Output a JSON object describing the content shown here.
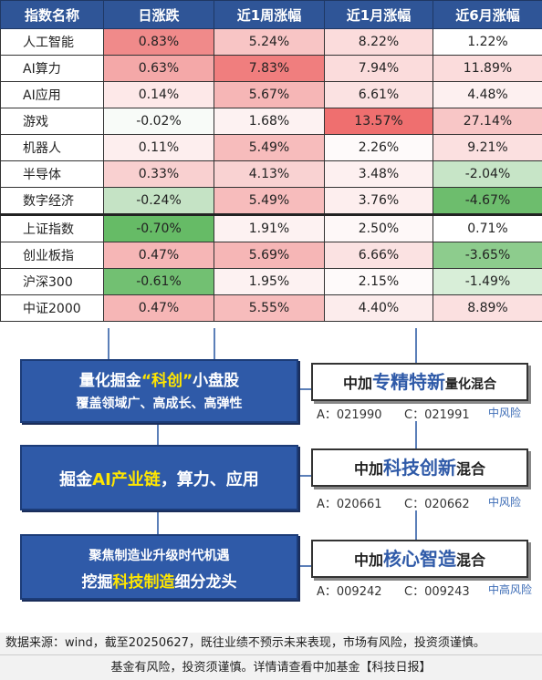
{
  "table": {
    "headers": [
      "指数名称",
      "日涨跌",
      "近1周涨幅",
      "近1月涨幅",
      "近6月涨幅"
    ],
    "rows": [
      {
        "name": "人工智能",
        "cells": [
          {
            "text": "0.83%",
            "bg": "#f08a8a"
          },
          {
            "text": "5.24%",
            "bg": "#f8c5c5"
          },
          {
            "text": "8.22%",
            "bg": "#fbdcdc"
          },
          {
            "text": "1.22%",
            "bg": "#ffffff"
          }
        ]
      },
      {
        "name": "AI算力",
        "cells": [
          {
            "text": "0.63%",
            "bg": "#f4a8a8"
          },
          {
            "text": "7.83%",
            "bg": "#f07e7e"
          },
          {
            "text": "7.94%",
            "bg": "#fbdcdc"
          },
          {
            "text": "11.89%",
            "bg": "#fbdcdc"
          }
        ]
      },
      {
        "name": "AI应用",
        "cells": [
          {
            "text": "0.14%",
            "bg": "#fde8e8"
          },
          {
            "text": "5.67%",
            "bg": "#f6b6b6"
          },
          {
            "text": "6.61%",
            "bg": "#fbe2e2"
          },
          {
            "text": "4.48%",
            "bg": "#fdf0f0"
          }
        ]
      },
      {
        "name": "游戏",
        "cells": [
          {
            "text": "-0.02%",
            "bg": "#f8fbf8"
          },
          {
            "text": "1.68%",
            "bg": "#fdf2f2"
          },
          {
            "text": "13.57%",
            "bg": "#ef6f6f"
          },
          {
            "text": "27.14%",
            "bg": "#f8c6c6"
          }
        ]
      },
      {
        "name": "机器人",
        "cells": [
          {
            "text": "0.11%",
            "bg": "#fdeeee"
          },
          {
            "text": "5.49%",
            "bg": "#f7bcbc"
          },
          {
            "text": "2.26%",
            "bg": "#fefafa"
          },
          {
            "text": "9.21%",
            "bg": "#fbe0e0"
          }
        ]
      },
      {
        "name": "半导体",
        "cells": [
          {
            "text": "0.33%",
            "bg": "#f9d0d0"
          },
          {
            "text": "4.13%",
            "bg": "#f9d2d2"
          },
          {
            "text": "3.48%",
            "bg": "#fdf0f0"
          },
          {
            "text": "-2.04%",
            "bg": "#c7e5c7"
          }
        ]
      },
      {
        "name": "数字经济",
        "cells": [
          {
            "text": "-0.24%",
            "bg": "#c5e3c5"
          },
          {
            "text": "5.49%",
            "bg": "#f7bcbc"
          },
          {
            "text": "3.76%",
            "bg": "#fdeeee"
          },
          {
            "text": "-4.67%",
            "bg": "#6dbd6d"
          }
        ]
      },
      {
        "name": "上证指数",
        "cells": [
          {
            "text": "-0.70%",
            "bg": "#66bb66"
          },
          {
            "text": "1.91%",
            "bg": "#fdf2f2"
          },
          {
            "text": "2.50%",
            "bg": "#fef8f8"
          },
          {
            "text": "0.71%",
            "bg": "#ffffff"
          }
        ]
      },
      {
        "name": "创业板指",
        "cells": [
          {
            "text": "0.47%",
            "bg": "#f6b6b6"
          },
          {
            "text": "5.69%",
            "bg": "#f6b6b6"
          },
          {
            "text": "6.66%",
            "bg": "#fbe2e2"
          },
          {
            "text": "-3.65%",
            "bg": "#8dcc8d"
          }
        ]
      },
      {
        "name": "沪深300",
        "cells": [
          {
            "text": "-0.61%",
            "bg": "#72c072"
          },
          {
            "text": "1.95%",
            "bg": "#fdf2f2"
          },
          {
            "text": "2.15%",
            "bg": "#fefafa"
          },
          {
            "text": "-1.49%",
            "bg": "#d8eed8"
          }
        ]
      },
      {
        "name": "中证2000",
        "cells": [
          {
            "text": "0.47%",
            "bg": "#f6b6b6"
          },
          {
            "text": "5.55%",
            "bg": "#f7bcbc"
          },
          {
            "text": "4.40%",
            "bg": "#fcecec"
          },
          {
            "text": "8.89%",
            "bg": "#fbe0e0"
          }
        ]
      }
    ]
  },
  "themes": [
    {
      "title_a": "量化掘金",
      "title_b": "“科创”",
      "title_c": "小盘股",
      "sub": "覆盖领域广、高成长、高弹性"
    },
    {
      "title_a": "掘金",
      "title_b": "AI产业链",
      "title_c": "，算力、应用"
    },
    {
      "line1": "聚焦制造业升级时代机遇",
      "line2_a": "挖掘",
      "line2_b": "科技制造",
      "line2_c": "细分龙头"
    }
  ],
  "funds": [
    {
      "prefix": "中加",
      "emph": "专精特新",
      "suffix": "量化混合",
      "code_a": "A：021990",
      "code_c": "C：021991",
      "risk": "中风险"
    },
    {
      "prefix": "中加",
      "emph": "科技创新",
      "suffix": "混合",
      "code_a": "A：020661",
      "code_c": "C：020662",
      "risk": "中风险"
    },
    {
      "prefix": "中加",
      "emph": "核心智造",
      "suffix": "混合",
      "code_a": "A：009242",
      "code_c": "C：009243",
      "risk": "中高风险"
    }
  ],
  "footer": {
    "source": "数据来源：wind，截至20250627，既往业绩不预示未来表现，市场有风险，投资须谨慎。",
    "disclaimer": "基金有风险，投资须谨慎。详情请查看中加基金【科技日报】"
  },
  "colors": {
    "header_bg": "#2f5597",
    "box_blue": "#2f5aa8",
    "highlight_yellow": "#ffe600",
    "fund_emph": "#2f5aa8"
  }
}
